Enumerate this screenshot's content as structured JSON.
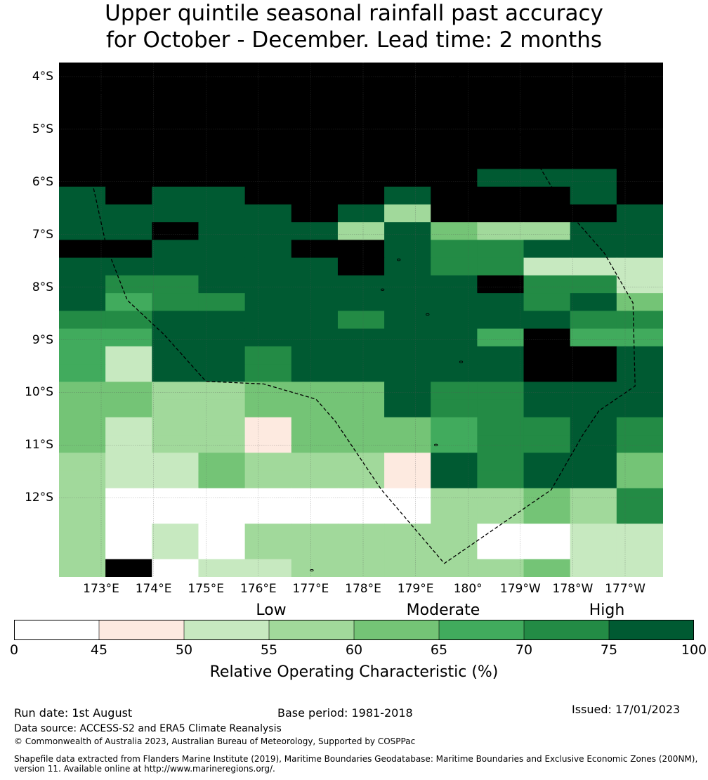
{
  "title": {
    "line1": "Upper quintile seasonal rainfall past accuracy",
    "line2": "for October - December. Lead time: 2 months"
  },
  "map": {
    "lat_labels": [
      "4°S",
      "5°S",
      "6°S",
      "7°S",
      "8°S",
      "9°S",
      "10°S",
      "11°S",
      "12°S"
    ],
    "lon_labels": [
      "173°E",
      "174°E",
      "175°E",
      "176°E",
      "177°E",
      "178°E",
      "179°E",
      "180°",
      "179°W",
      "178°W",
      "177°W"
    ],
    "grid_levels": [
      "9999999999999",
      "9999999999999",
      "9999999999999",
      "9999999999999",
      "9999999999999",
      "9999999999999",
      "9999999998889",
      "8988999799989",
      "7878797399997",
      "8898773743388",
      "9978799766888",
      "8777779766222",
      "7667788889662",
      "7566888887674",
      "6678886777866",
      "5577777775955",
      "5277677777998",
      "5277677777998",
      "4433444766777",
      "4433444766777",
      "4233144456676",
      "4233144456676",
      "3224333176774",
      "3224333176774",
      "3000000033436",
      "3000000033436",
      "3020333330022",
      "3020333330022",
      "3902233333422"
    ],
    "boundary_lon_lat": [
      [
        172.98,
        -4.31
      ],
      [
        173.6,
        -4.14
      ],
      [
        176.0,
        -4.09
      ],
      [
        177.3,
        -4.38
      ],
      [
        179.94,
        -3.98
      ],
      [
        -179.64,
        -4.55
      ],
      [
        -179.05,
        -5.02
      ],
      [
        -178.43,
        -6.05
      ],
      [
        -178.13,
        -6.52
      ],
      [
        -177.4,
        -7.35
      ],
      [
        -176.85,
        -8.3
      ],
      [
        -176.81,
        -9.88
      ],
      [
        -177.5,
        -10.35
      ],
      [
        -177.81,
        -10.81
      ],
      [
        -178.41,
        -11.85
      ],
      [
        179.55,
        -13.25
      ],
      [
        178.35,
        -11.85
      ],
      [
        177.47,
        -10.55
      ],
      [
        177.1,
        -10.13
      ],
      [
        176.1,
        -9.84
      ],
      [
        175.0,
        -9.79
      ],
      [
        174.2,
        -8.9
      ],
      [
        173.5,
        -8.25
      ],
      [
        173.1,
        -7.23
      ],
      [
        172.75,
        -5.65
      ],
      [
        172.98,
        -4.31
      ]
    ],
    "islands_lon_lat": [
      [
        176.07,
        -5.67
      ],
      [
        176.24,
        -6.31
      ],
      [
        177.34,
        -6.12
      ],
      [
        177.15,
        -7.28
      ],
      [
        178.68,
        -7.48
      ],
      [
        178.37,
        -8.05
      ],
      [
        179.23,
        -8.52
      ],
      [
        179.87,
        -9.42
      ],
      [
        179.39,
        -11.0
      ],
      [
        177.02,
        -13.38
      ]
    ]
  },
  "colorbar": {
    "colors": [
      "#ffffff",
      "#fdeae0",
      "#c7e9c0",
      "#a1d99b",
      "#74c476",
      "#41ab5d",
      "#238b45",
      "#005a32",
      "#005a32"
    ],
    "ticks": [
      "0",
      "45",
      "50",
      "55",
      "60",
      "65",
      "70",
      "75",
      "100"
    ],
    "category_labels": [
      "Low",
      "Moderate",
      "High"
    ],
    "label": "Relative Operating Characteristic (%)"
  },
  "footer": {
    "run_date": "Run date: 1st August",
    "base_period": "Base period: 1981-2018",
    "issued": "Issued: 17/01/2023",
    "data_source": "Data source: ACCESS-S2 and ERA5 Climate Reanalysis",
    "copyright": "© Commonwealth of Australia 2023, Australian Bureau of Meteorology, Supported by COSPPac",
    "shapefile_line1": "Shapefile data extracted from Flanders Marine Institute (2019), Maritime Boundaries Geodatabase: Maritime Boundaries and Exclusive Economic Zones (200NM),",
    "shapefile_line2": "version 11. Available online at http://www.marineregions.org/."
  }
}
